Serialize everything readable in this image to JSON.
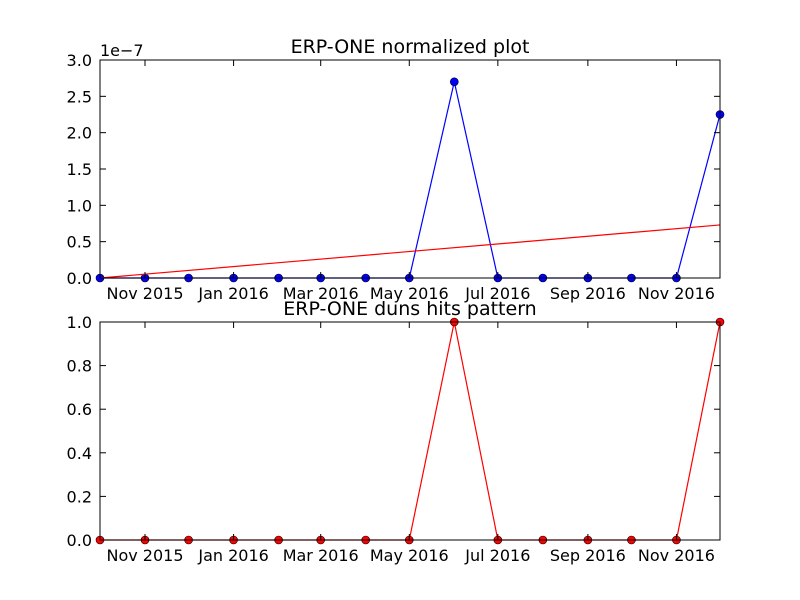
{
  "chart_data": [
    {
      "type": "line",
      "title": "ERP-ONE normalized plot",
      "xlabel": "",
      "ylabel": "",
      "y_offset_label": "1e−7",
      "y_scale": 1e-07,
      "ylim": [
        0,
        3e-07
      ],
      "yticks": [
        0,
        5e-08,
        1e-07,
        1.5e-07,
        2e-07,
        2.5e-07,
        3e-07
      ],
      "ytick_labels": [
        "0.0",
        "0.5",
        "1.0",
        "1.5",
        "2.0",
        "2.5",
        "3.0"
      ],
      "xlim": [
        "2015-10-01",
        "2016-12-01"
      ],
      "xticks": [
        "2015-11-01",
        "2016-01-01",
        "2016-03-01",
        "2016-05-01",
        "2016-07-01",
        "2016-09-01",
        "2016-11-01"
      ],
      "xtick_labels": [
        "Nov 2015",
        "Jan 2016",
        "Mar 2016",
        "May 2016",
        "Jul 2016",
        "Sep 2016",
        "Nov 2016"
      ],
      "grid": false,
      "legend": "none",
      "x": [
        "2015-10-01",
        "2015-11-01",
        "2015-12-01",
        "2016-01-01",
        "2016-02-01",
        "2016-03-01",
        "2016-04-01",
        "2016-05-01",
        "2016-06-01",
        "2016-07-01",
        "2016-08-01",
        "2016-09-01",
        "2016-10-01",
        "2016-11-01",
        "2016-12-01"
      ],
      "series": [
        {
          "color": "#0000ff",
          "marker": "circle",
          "values": [
            0,
            0,
            0,
            0,
            0,
            0,
            0,
            0,
            2.7e-07,
            0,
            0,
            0,
            0,
            0,
            2.25e-07
          ]
        },
        {
          "color": "#ff0000",
          "marker": "none",
          "x": [
            "2015-10-01",
            "2016-12-01"
          ],
          "values": [
            0,
            7.3e-08
          ]
        }
      ]
    },
    {
      "type": "line",
      "title": "ERP-ONE duns hits pattern",
      "xlabel": "",
      "ylabel": "",
      "ylim": [
        0,
        1.0
      ],
      "yticks": [
        0,
        0.2,
        0.4,
        0.6,
        0.8,
        1.0
      ],
      "ytick_labels": [
        "0.0",
        "0.2",
        "0.4",
        "0.6",
        "0.8",
        "1.0"
      ],
      "xlim": [
        "2015-10-01",
        "2016-12-01"
      ],
      "xticks": [
        "2015-11-01",
        "2016-01-01",
        "2016-03-01",
        "2016-05-01",
        "2016-07-01",
        "2016-09-01",
        "2016-11-01"
      ],
      "xtick_labels": [
        "Nov 2015",
        "Jan 2016",
        "Mar 2016",
        "May 2016",
        "Jul 2016",
        "Sep 2016",
        "Nov 2016"
      ],
      "grid": false,
      "legend": "none",
      "x": [
        "2015-10-01",
        "2015-11-01",
        "2015-12-01",
        "2016-01-01",
        "2016-02-01",
        "2016-03-01",
        "2016-04-01",
        "2016-05-01",
        "2016-06-01",
        "2016-07-01",
        "2016-08-01",
        "2016-09-01",
        "2016-10-01",
        "2016-11-01",
        "2016-12-01"
      ],
      "series": [
        {
          "color": "#ff0000",
          "marker": "circle",
          "values": [
            0,
            0,
            0,
            0,
            0,
            0,
            0,
            0,
            1,
            0,
            0,
            0,
            0,
            0,
            1
          ]
        }
      ]
    }
  ]
}
